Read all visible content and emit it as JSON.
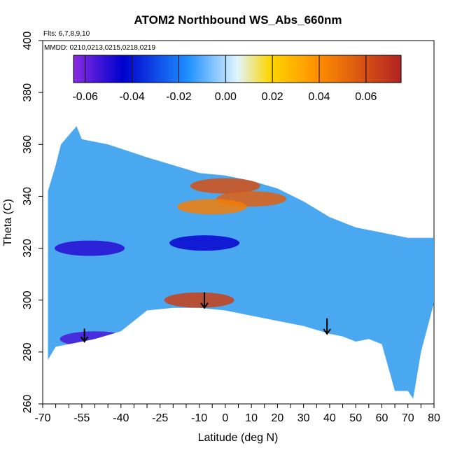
{
  "chart_data": {
    "type": "heatmap",
    "title": "ATOM2 Northbound WS_Abs_660nm",
    "notes": [
      "Flts: 6,7,8,9,10",
      "MMDD: 0210,0213,0215,0218,0219"
    ],
    "xlabel": "Latitude (deg N)",
    "ylabel": "Theta (C)",
    "xlim": [
      -70,
      80
    ],
    "ylim": [
      260,
      400
    ],
    "x_ticks_labeled": [
      -70,
      -55,
      -40,
      -25,
      -10,
      0,
      10,
      20,
      30,
      40,
      50,
      60,
      70,
      80
    ],
    "x_ticks_minor": [
      -65,
      -60,
      -50,
      -45,
      -35,
      -30,
      -20,
      -15,
      -5,
      5,
      15,
      25,
      35,
      45,
      55,
      65,
      75
    ],
    "y_ticks": [
      260,
      280,
      300,
      320,
      340,
      360,
      380,
      400
    ],
    "colorbar": {
      "range": [
        -0.065,
        0.075
      ],
      "ticks": [
        -0.06,
        -0.04,
        -0.02,
        0.0,
        0.02,
        0.04,
        0.06
      ],
      "tick_labels": [
        "-0.06",
        "-0.04",
        "-0.02",
        "0.00",
        "0.02",
        "0.04",
        "0.06"
      ],
      "colors": [
        "#8a2be2",
        "#0000cd",
        "#1e90ff",
        "#e0f4ff",
        "#ffd700",
        "#ff8c00",
        "#b22222"
      ]
    },
    "domain_outline": {
      "top": [
        [
          -68,
          342
        ],
        [
          -65,
          352
        ],
        [
          -63,
          360
        ],
        [
          -57,
          367
        ],
        [
          -55,
          362
        ],
        [
          -45,
          360
        ],
        [
          -30,
          355
        ],
        [
          -20,
          352
        ],
        [
          -10,
          349
        ],
        [
          0,
          348
        ],
        [
          10,
          346
        ],
        [
          20,
          343
        ],
        [
          30,
          338
        ],
        [
          40,
          332
        ],
        [
          50,
          328
        ],
        [
          60,
          326
        ],
        [
          70,
          324
        ],
        [
          80,
          324
        ]
      ],
      "bottom": [
        [
          80,
          299
        ],
        [
          75,
          280
        ],
        [
          72,
          262
        ],
        [
          70,
          265
        ],
        [
          65,
          265
        ],
        [
          60,
          283
        ],
        [
          55,
          285
        ],
        [
          50,
          284
        ],
        [
          45,
          286
        ],
        [
          40,
          287
        ],
        [
          30,
          290
        ],
        [
          20,
          292
        ],
        [
          10,
          294
        ],
        [
          0,
          296
        ],
        [
          -10,
          297
        ],
        [
          -20,
          297
        ],
        [
          -30,
          296
        ],
        [
          -40,
          288
        ],
        [
          -50,
          285
        ],
        [
          -55,
          284
        ],
        [
          -65,
          282
        ],
        [
          -68,
          277
        ]
      ]
    },
    "features": [
      {
        "type": "high",
        "lon": -10,
        "lat": 300,
        "value": 0.065
      },
      {
        "type": "high",
        "lon": 0,
        "lat": 344,
        "value": 0.06
      },
      {
        "type": "high",
        "lon": 10,
        "lat": 339,
        "value": 0.055
      },
      {
        "type": "high",
        "lon": -5,
        "lat": 336,
        "value": 0.045
      },
      {
        "type": "low",
        "lon": -50,
        "lat": 285,
        "value": -0.055
      },
      {
        "type": "low",
        "lon": -52,
        "lat": 320,
        "value": -0.05
      },
      {
        "type": "low",
        "lon": -8,
        "lat": 322,
        "value": -0.045
      }
    ],
    "arrows": [
      {
        "x": -54,
        "y_top": 289,
        "y_bottom": 284
      },
      {
        "x": -8,
        "y_top": 303,
        "y_bottom": 297
      },
      {
        "x": 39,
        "y_top": 293,
        "y_bottom": 287
      }
    ]
  }
}
